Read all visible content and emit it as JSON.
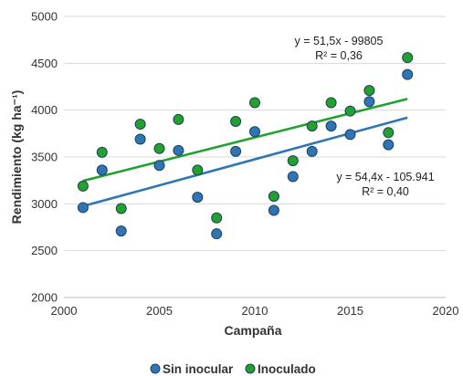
{
  "chart_data": {
    "type": "scatter",
    "xlabel": "Campaña",
    "ylabel": "Rendimiento (kg ha⁻¹)",
    "xlim": [
      2000,
      2020
    ],
    "ylim": [
      2000,
      5000
    ],
    "x_ticks": [
      2000,
      2005,
      2010,
      2015,
      2020
    ],
    "y_ticks": [
      2000,
      2500,
      3000,
      3500,
      4000,
      4500,
      5000
    ],
    "grid": "horizontal",
    "legend_position": "bottom",
    "x": [
      2001,
      2002,
      2003,
      2004,
      2005,
      2006,
      2007,
      2008,
      2009,
      2010,
      2011,
      2012,
      2013,
      2014,
      2015,
      2016,
      2017,
      2018
    ],
    "series": [
      {
        "name": "Sin inocular",
        "color": "#2e75b6",
        "values": [
          2960,
          3360,
          2710,
          3690,
          3410,
          3570,
          3070,
          2680,
          3560,
          3770,
          2930,
          3290,
          3560,
          3830,
          3740,
          4090,
          3630,
          4380
        ],
        "trendline": {
          "x": [
            2001,
            2018
          ],
          "y": [
            2975,
            3920
          ]
        },
        "equation": "y = 54,4x - 105.941",
        "r2": "R² = 0,40"
      },
      {
        "name": "Inoculado",
        "color": "#22a12e",
        "values": [
          3190,
          3550,
          2950,
          3850,
          3590,
          3900,
          3360,
          2850,
          3880,
          4080,
          3080,
          3460,
          3830,
          4080,
          3990,
          4210,
          3760,
          4560
        ],
        "trendline": {
          "x": [
            2001,
            2018
          ],
          "y": [
            3245,
            4120
          ]
        },
        "equation": "y = 51,5x - 99805",
        "r2": "R² = 0,36"
      }
    ]
  }
}
